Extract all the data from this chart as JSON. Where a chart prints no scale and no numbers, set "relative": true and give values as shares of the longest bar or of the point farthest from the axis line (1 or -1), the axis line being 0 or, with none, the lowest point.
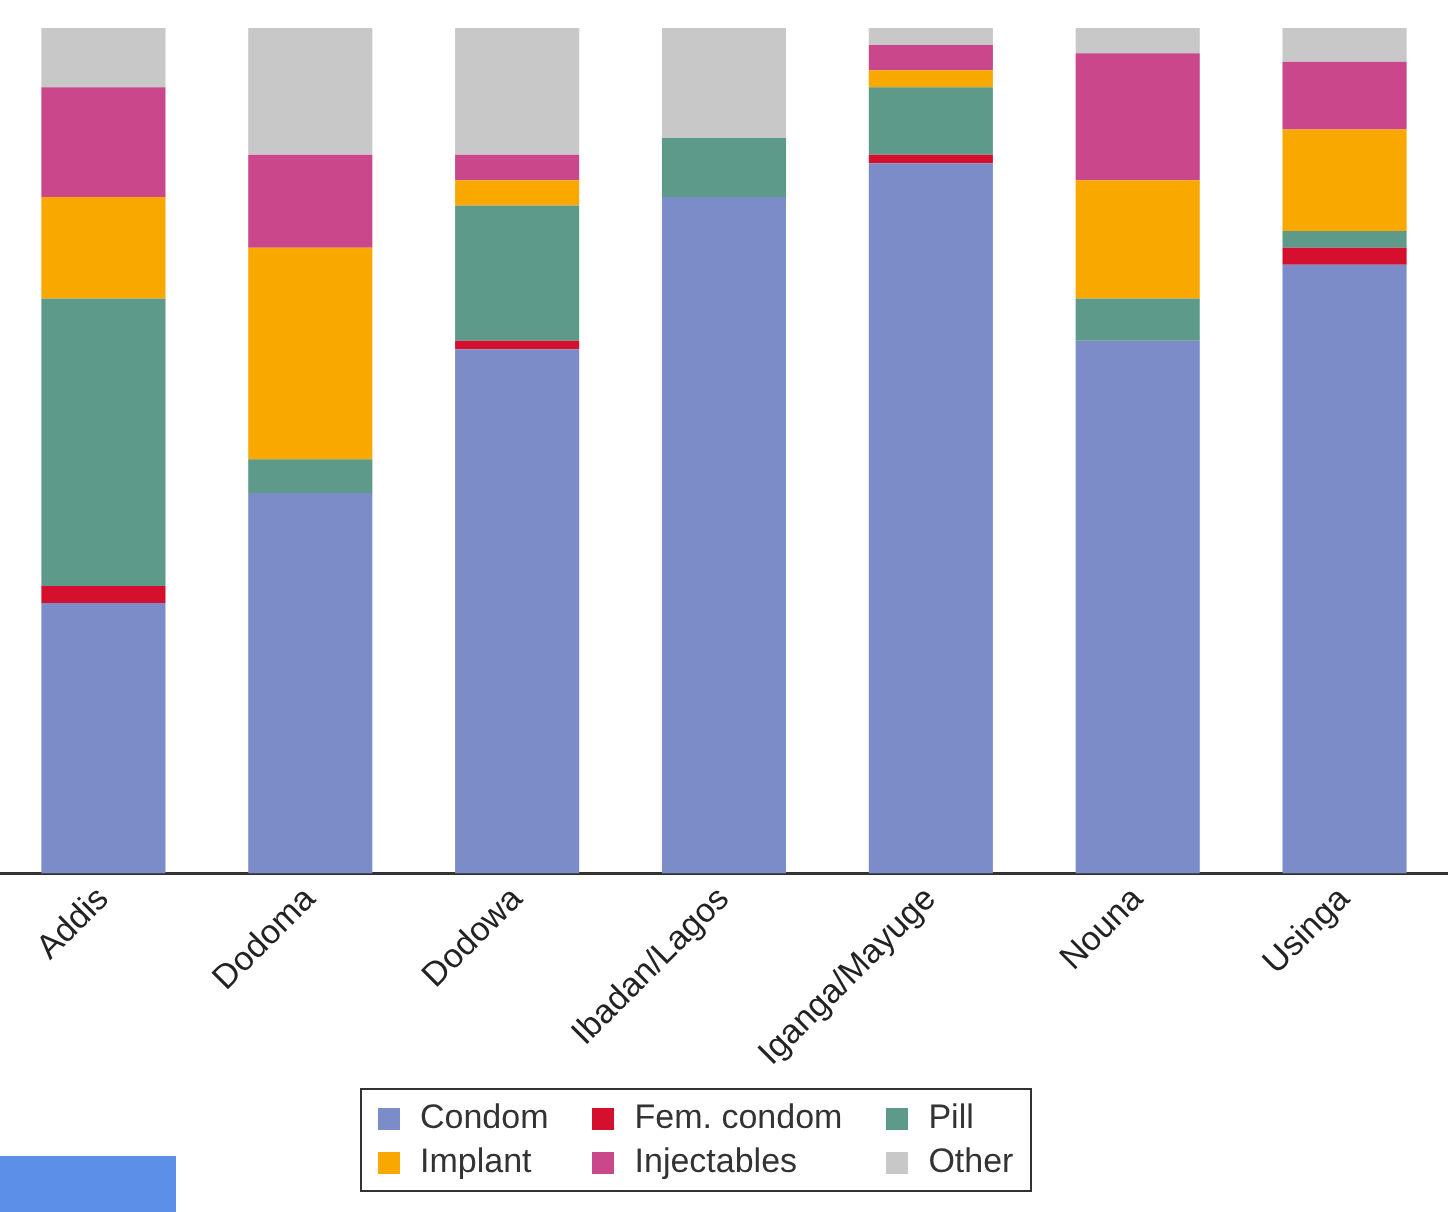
{
  "chart_data": {
    "type": "bar",
    "stacked": true,
    "relative": true,
    "legend": "bottom",
    "categories": [
      "Addis",
      "Dodoma",
      "Dodowa",
      "Ibadan/Lagos",
      "Iganga/Mayuge",
      "Nouna",
      "Usinga"
    ],
    "series": [
      {
        "name": "Condom",
        "color": "#7b8cc9",
        "values": [
          0.32,
          0.45,
          0.62,
          0.8,
          0.84,
          0.63,
          0.72
        ]
      },
      {
        "name": "Fem. condom",
        "color": "#d4102e",
        "values": [
          0.02,
          0,
          0.01,
          0,
          0.01,
          0,
          0.02
        ]
      },
      {
        "name": "Pill",
        "color": "#5e9a8a",
        "values": [
          0.34,
          0.04,
          0.16,
          0.07,
          0.08,
          0.05,
          0.02
        ]
      },
      {
        "name": "Implant",
        "color": "#f9a800",
        "values": [
          0.12,
          0.25,
          0.03,
          0,
          0.02,
          0.14,
          0.12
        ]
      },
      {
        "name": "Injectables",
        "color": "#c9478a",
        "values": [
          0.13,
          0.11,
          0.03,
          0,
          0.03,
          0.15,
          0.08
        ]
      },
      {
        "name": "Other",
        "color": "#c8c8c8",
        "values": [
          0.07,
          0.15,
          0.15,
          0.13,
          0.02,
          0.03,
          0.04
        ]
      }
    ]
  }
}
